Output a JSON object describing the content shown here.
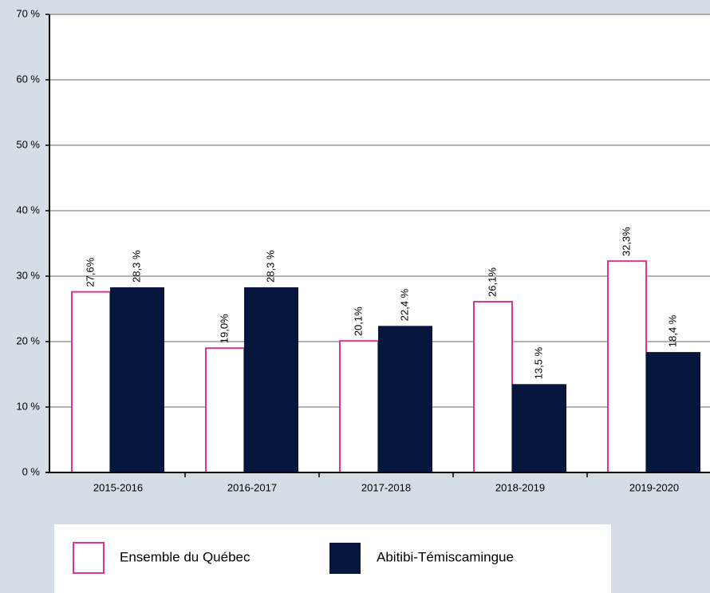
{
  "chart_data": {
    "type": "bar",
    "categories": [
      "2015-2016",
      "2016-2017",
      "2017-2018",
      "2018-2019",
      "2019-2020"
    ],
    "series": [
      {
        "name": "Ensemble du Québec",
        "color": "#e0358c",
        "values": [
          27.6,
          19.0,
          20.1,
          26.1,
          32.3
        ],
        "value_labels": [
          "27,6%",
          "19,0%",
          "20,1%",
          "26,1%",
          "32,3%"
        ]
      },
      {
        "name": "Abitibi-Témiscamingue",
        "color": "#07163d",
        "values": [
          28.3,
          28.3,
          22.4,
          13.5,
          18.4
        ],
        "value_labels": [
          "28,3 %",
          "28,3 %",
          "22,4 %",
          "13,5 %",
          "18,4 %"
        ]
      }
    ],
    "ylim": [
      0,
      70
    ],
    "yticks": [
      {
        "value": 0,
        "label": "0 %"
      },
      {
        "value": 10,
        "label": "10 %"
      },
      {
        "value": 20,
        "label": "20 %"
      },
      {
        "value": 30,
        "label": "30 %"
      },
      {
        "value": 40,
        "label": "40 %"
      },
      {
        "value": 50,
        "label": "50 %"
      },
      {
        "value": 60,
        "label": "60 %"
      },
      {
        "value": 70,
        "label": "70 %"
      }
    ],
    "grid": true,
    "legend": "bottom"
  }
}
